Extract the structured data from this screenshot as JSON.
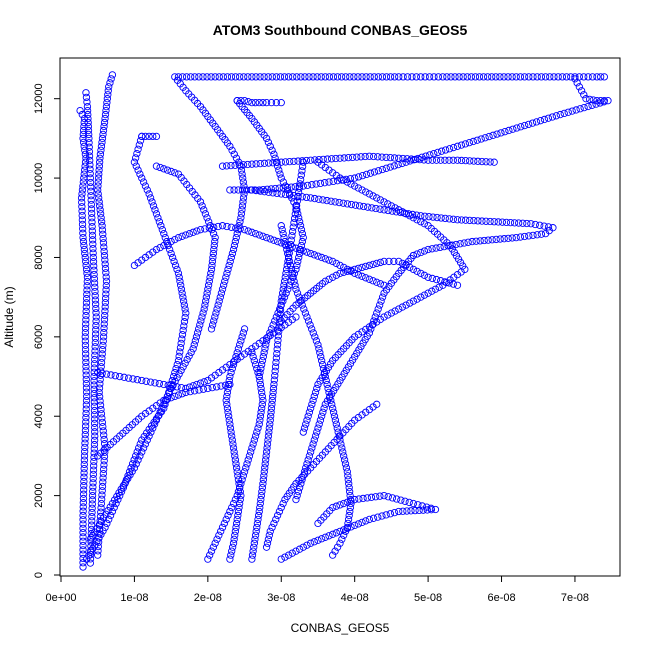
{
  "chart_data": {
    "type": "scatter",
    "title": "ATOM3 Southbound CONBAS_GEOS5",
    "xlabel": "CONBAS_GEOS5",
    "ylabel": "Altitude (m)",
    "xlim": [
      0,
      7.6e-08
    ],
    "ylim": [
      0,
      13000
    ],
    "xticks": [
      {
        "value": 0,
        "label": "0e+00"
      },
      {
        "value": 1e-08,
        "label": "1e-08"
      },
      {
        "value": 2e-08,
        "label": "2e-08"
      },
      {
        "value": 3e-08,
        "label": "3e-08"
      },
      {
        "value": 4e-08,
        "label": "4e-08"
      },
      {
        "value": 5e-08,
        "label": "5e-08"
      },
      {
        "value": 6e-08,
        "label": "6e-08"
      },
      {
        "value": 7e-08,
        "label": "7e-08"
      }
    ],
    "yticks": [
      {
        "value": 0,
        "label": "0"
      },
      {
        "value": 2000,
        "label": "2000"
      },
      {
        "value": 4000,
        "label": "4000"
      },
      {
        "value": 6000,
        "label": "6000"
      },
      {
        "value": 8000,
        "label": "8000"
      },
      {
        "value": 10000,
        "label": "10000"
      },
      {
        "value": 12000,
        "label": "12000"
      }
    ],
    "grid": false,
    "legend": "none",
    "marker": "open-circle",
    "color": "#0000ff",
    "series": [
      {
        "x": [
          3e-09,
          3e-09,
          3.2e-09,
          3.5e-09,
          3.3e-09,
          3.6e-09,
          3e-09,
          2.8e-09,
          3.1e-09,
          3.4e-09,
          3e-09,
          3.2e-09,
          2.6e-09
        ],
        "y": [
          200,
          1500,
          3000,
          4500,
          6000,
          7500,
          8500,
          9500,
          10000,
          10500,
          11000,
          11500,
          11700
        ]
      },
      {
        "x": [
          4e-09,
          4.3e-09,
          4.6e-09,
          4.5e-09,
          4.8e-09,
          4.4e-09,
          4.2e-09,
          4e-09,
          3.8e-09,
          3.6e-09,
          3.4e-09
        ],
        "y": [
          300,
          2000,
          3500,
          5000,
          6500,
          8000,
          9000,
          10000,
          11000,
          11800,
          12150
        ]
      },
      {
        "x": [
          5e-09,
          5.5e-09,
          6e-09,
          5.2e-09,
          5.8e-09,
          6.2e-09,
          5.6e-09,
          5e-09,
          5.3e-09,
          6e-09,
          6.5e-09,
          7e-09
        ],
        "y": [
          500,
          1800,
          3200,
          4600,
          6000,
          7400,
          8800,
          9700,
          10500,
          11500,
          12300,
          12600
        ]
      },
      {
        "x": [
          3.5e-09,
          6e-09,
          8.5e-09,
          1.1e-08,
          1.4e-08,
          1.6e-08,
          1.7e-08,
          1.6e-08,
          1.4e-08,
          1.2e-08,
          1e-08,
          1.1e-08
        ],
        "y": [
          400,
          1200,
          2200,
          3400,
          4200,
          5400,
          6600,
          7600,
          8600,
          9600,
          10400,
          11050
        ]
      },
      {
        "x": [
          4e-09,
          7e-09,
          1e-08,
          1.25e-08,
          1.5e-08,
          1.8e-08,
          1.95e-08,
          2.05e-08,
          2.1e-08,
          1.9e-08,
          1.6e-08,
          1.3e-08
        ],
        "y": [
          900,
          1800,
          2700,
          3700,
          4700,
          5700,
          6700,
          7700,
          8500,
          9400,
          10100,
          10300
        ]
      },
      {
        "x": [
          1.6e-08,
          2.1e-08,
          2.6e-08,
          3.1e-08,
          3.6e-08,
          4.1e-08,
          4.6e-08,
          5.2e-08,
          5.7e-08,
          6.2e-08,
          6.6e-08,
          7e-08,
          7.3e-08,
          7.4e-08
        ],
        "y": [
          12550,
          12550,
          12550,
          12550,
          12550,
          12550,
          12550,
          12550,
          12550,
          12550,
          12550,
          12550,
          12550,
          12550
        ]
      },
      {
        "x": [
          7e-08,
          7.15e-08,
          7.3e-08,
          7.45e-08,
          6.8e-08,
          6.1e-08,
          5.4e-08,
          4.7e-08,
          4e-08,
          3.3e-08,
          2.7e-08,
          2.3e-08
        ],
        "y": [
          12500,
          12000,
          11950,
          11950,
          11600,
          11200,
          10800,
          10400,
          10000,
          9800,
          9700,
          9700
        ]
      },
      {
        "x": [
          1.55e-08,
          1.7e-08,
          1.9e-08,
          2.1e-08,
          2.3e-08,
          2.45e-08,
          2.5e-08,
          2.45e-08,
          2.35e-08,
          2.2e-08,
          2.05e-08
        ],
        "y": [
          12550,
          12200,
          11800,
          11300,
          10800,
          10300,
          9700,
          9000,
          8200,
          7200,
          6200
        ]
      },
      {
        "x": [
          2.4e-08,
          2.6e-08,
          2.8e-08,
          2.9e-08,
          3e-08,
          3.2e-08,
          3.3e-08,
          3.2e-08,
          3e-08,
          2.8e-08,
          2.7e-08
        ],
        "y": [
          11950,
          11500,
          11000,
          10600,
          10000,
          9300,
          8500,
          7700,
          6800,
          5900,
          5000
        ]
      },
      {
        "x": [
          2.2e-08,
          2.6e-08,
          3e-08,
          3.4e-08,
          3.8e-08,
          4.2e-08,
          4.6e-08,
          5e-08,
          5.4e-08,
          5.9e-08
        ],
        "y": [
          10300,
          10350,
          10400,
          10450,
          10500,
          10550,
          10500,
          10450,
          10450,
          10400
        ]
      },
      {
        "x": [
          2.6e-08,
          3e-08,
          3.4e-08,
          3.9e-08,
          4.4e-08,
          4.9e-08,
          5.4e-08,
          5.9e-08,
          6.4e-08,
          6.7e-08,
          6.6e-08,
          6.2e-08,
          5.6e-08,
          5e-08,
          4.8e-08
        ],
        "y": [
          9700,
          9600,
          9500,
          9350,
          9200,
          9050,
          8950,
          8900,
          8850,
          8750,
          8600,
          8500,
          8400,
          8200,
          8050
        ]
      },
      {
        "x": [
          4.8e-08,
          4.6e-08,
          4.4e-08,
          4.3e-08,
          4.2e-08,
          4e-08,
          3.8e-08,
          3.6e-08,
          3.5e-08,
          3.4e-08,
          3.3e-08,
          3.2e-08
        ],
        "y": [
          8050,
          7600,
          7100,
          6600,
          6100,
          5500,
          4900,
          4300,
          3700,
          3100,
          2500,
          1900
        ]
      },
      {
        "x": [
          3e-08,
          3.1e-08,
          3.2e-08,
          3.35e-08,
          3.5e-08,
          3.6e-08,
          3.7e-08,
          3.8e-08,
          3.9e-08,
          3.95e-08,
          3.9e-08,
          3.8e-08,
          3.7e-08
        ],
        "y": [
          8800,
          8000,
          7200,
          6500,
          5800,
          5000,
          4200,
          3400,
          2600,
          1800,
          1200,
          800,
          500
        ]
      },
      {
        "x": [
          3.5e-08,
          3.8e-08,
          4.2e-08,
          4.6e-08,
          5e-08,
          5.3e-08,
          5.5e-08,
          5.2e-08,
          4.8e-08,
          4.4e-08,
          4e-08,
          3.7e-08,
          3.5e-08,
          3.4e-08,
          3.3e-08
        ],
        "y": [
          10400,
          10000,
          9600,
          9200,
          8800,
          8300,
          7700,
          7300,
          6900,
          6500,
          6000,
          5400,
          4800,
          4200,
          3600
        ]
      },
      {
        "x": [
          3.3e-08,
          3.2e-08,
          3.1e-08,
          3e-08,
          2.95e-08,
          2.9e-08,
          2.85e-08,
          2.8e-08,
          2.75e-08,
          2.7e-08,
          2.65e-08,
          2.6e-08
        ],
        "y": [
          10400,
          9200,
          8000,
          6900,
          5800,
          4800,
          3900,
          3100,
          2300,
          1600,
          1000,
          400
        ]
      },
      {
        "x": [
          2.5e-08,
          2.4e-08,
          2.3e-08,
          2.25e-08,
          2.3e-08,
          2.35e-08,
          2.4e-08,
          2.45e-08,
          2.4e-08,
          2.35e-08,
          2.3e-08
        ],
        "y": [
          6200,
          5600,
          5000,
          4400,
          3800,
          3200,
          2600,
          2000,
          1400,
          800,
          400
        ]
      },
      {
        "x": [
          2e-08,
          2.1e-08,
          2.2e-08,
          2.3e-08,
          2.4e-08,
          2.5e-08,
          2.6e-08,
          2.7e-08,
          2.75e-08,
          2.7e-08,
          2.6e-08
        ],
        "y": [
          400,
          800,
          1200,
          1600,
          2000,
          2600,
          3200,
          3800,
          4400,
          5000,
          5600
        ]
      },
      {
        "x": [
          4.3e-08,
          4e-08,
          3.8e-08,
          3.6e-08,
          3.4e-08,
          3.2e-08,
          3.05e-08,
          2.95e-08,
          2.85e-08,
          2.8e-08
        ],
        "y": [
          4300,
          3900,
          3500,
          3100,
          2700,
          2300,
          1900,
          1500,
          1100,
          700
        ]
      },
      {
        "x": [
          3e-08,
          3.4e-08,
          3.8e-08,
          4.2e-08,
          4.6e-08,
          5.1e-08,
          4.8e-08,
          4.4e-08,
          4e-08,
          3.7e-08,
          3.5e-08
        ],
        "y": [
          400,
          800,
          1100,
          1400,
          1600,
          1650,
          1800,
          2000,
          1900,
          1700,
          1300
        ]
      },
      {
        "x": [
          5e-09,
          8e-09,
          1.1e-08,
          1.4e-08,
          1.7e-08,
          2e-08,
          2.3e-08,
          2.6e-08,
          2.9e-08,
          3.2e-08
        ],
        "y": [
          5100,
          5000,
          4900,
          4800,
          4700,
          4900,
          5300,
          5700,
          6100,
          6500
        ]
      },
      {
        "x": [
          5e-09,
          8e-09,
          1.1e-08,
          1.4e-08,
          1.7e-08,
          2e-08,
          2.3e-08
        ],
        "y": [
          3000,
          3500,
          4000,
          4400,
          4600,
          4700,
          4800
        ]
      },
      {
        "x": [
          1e-08,
          1.3e-08,
          1.6e-08,
          1.9e-08,
          2.2e-08,
          2.5e-08,
          2.8e-08,
          3.1e-08,
          3.4e-08,
          3.7e-08,
          4e-08,
          4.4e-08
        ],
        "y": [
          7800,
          8200,
          8500,
          8700,
          8800,
          8700,
          8500,
          8300,
          8100,
          7900,
          7600,
          7300
        ]
      },
      {
        "x": [
          3e-08,
          3.2e-08,
          3.4e-08,
          3.6e-08,
          3.8e-08,
          4e-08,
          4.2e-08,
          4.4e-08,
          4.6e-08,
          4.8e-08,
          5e-08,
          5.4e-08
        ],
        "y": [
          6400,
          6800,
          7100,
          7400,
          7600,
          7700,
          7800,
          7900,
          7900,
          7700,
          7500,
          7300
        ]
      },
      {
        "x": [
          1.1e-08,
          1.15e-08,
          1.2e-08,
          1.25e-08,
          1.3e-08
        ],
        "y": [
          11050,
          11050,
          11050,
          11050,
          11050
        ]
      },
      {
        "x": [
          2.4e-08,
          2.5e-08,
          2.6e-08,
          2.7e-08,
          2.8e-08,
          3e-08
        ],
        "y": [
          11950,
          11950,
          11900,
          11900,
          11900,
          11900
        ]
      }
    ]
  }
}
